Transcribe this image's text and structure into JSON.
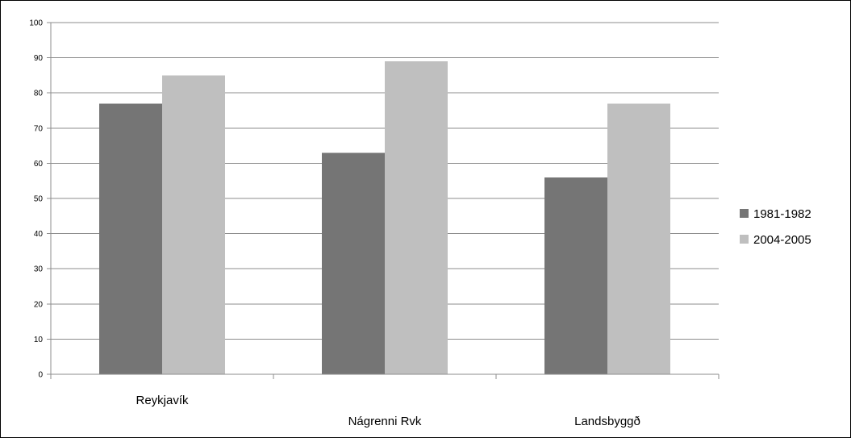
{
  "chart_data": {
    "type": "bar",
    "title": "",
    "xlabel": "",
    "ylabel": "",
    "categories": [
      "Reykjavík",
      "Nágrenni Rvk",
      "Landsbyggð"
    ],
    "series": [
      {
        "name": "1981-1982",
        "values": [
          77,
          63,
          56
        ],
        "color": "#757575"
      },
      {
        "name": "2004-2005",
        "values": [
          85,
          89,
          77
        ],
        "color": "#bfbfbf"
      }
    ],
    "ylim": [
      0,
      100
    ],
    "yticks": [
      0,
      10,
      20,
      30,
      40,
      50,
      60,
      70,
      80,
      90,
      100
    ],
    "grid": true,
    "gridline_color": "#8c8c8c",
    "legend_position": "right",
    "category_label_layout": "staggered"
  }
}
